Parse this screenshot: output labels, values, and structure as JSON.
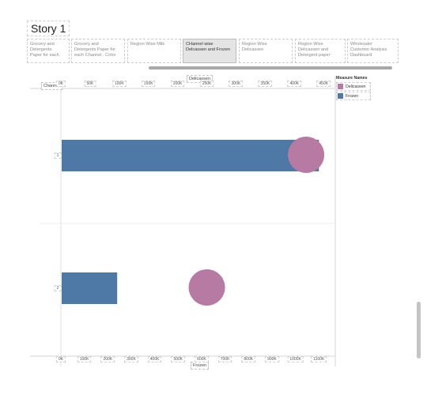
{
  "story": {
    "title": "Story 1",
    "points": [
      {
        "lines": [
          "Grocery and",
          "Detergents",
          "Paper for each"
        ],
        "active": false
      },
      {
        "lines": [
          "Grocery and",
          "Detergents Paper for",
          "each Channel . Color"
        ],
        "active": false
      },
      {
        "lines": [
          "Region Wise Milk"
        ],
        "active": false
      },
      {
        "lines": [
          "CHannel wise",
          "Delcassen and Frozen"
        ],
        "active": true
      },
      {
        "lines": [
          "Region Wise",
          "Delicassen"
        ],
        "active": false
      },
      {
        "lines": [
          "Region Wise",
          "Delicassen and",
          "Detergent paper"
        ],
        "active": false
      },
      {
        "lines": [
          "Wholesaler",
          "Customer Analysis",
          "Dashboard"
        ],
        "active": false
      }
    ]
  },
  "top_axis": {
    "title": "Delicassen",
    "ticks": [
      "0K",
      "50K",
      "100K",
      "150K",
      "200K",
      "250K",
      "300K",
      "350K",
      "400K",
      "450K"
    ]
  },
  "bottom_axis": {
    "title": "Frozen",
    "ticks": [
      "0K",
      "100K",
      "200K",
      "300K",
      "400K",
      "500K",
      "600K",
      "700K",
      "800K",
      "900K",
      "1000K",
      "1100K"
    ]
  },
  "row_header": {
    "title": "Channel"
  },
  "legend": {
    "title": "Measure Names",
    "items": [
      {
        "label": "Delicassen",
        "color": "#b77aa3"
      },
      {
        "label": "Frozen",
        "color": "#4e79a7"
      }
    ]
  },
  "chart_data": {
    "type": "bar",
    "categories": [
      "1",
      "2"
    ],
    "series": [
      {
        "name": "Frozen",
        "values": [
          1100000,
          240000
        ],
        "mark": "bar",
        "color": "#4e79a7"
      },
      {
        "name": "Delicassen",
        "values": [
          420000,
          250000
        ],
        "mark": "circle",
        "color": "#b77aa3"
      }
    ],
    "x_top": {
      "label": "Delicassen",
      "range": [
        0,
        470000
      ]
    },
    "x_bottom": {
      "label": "Frozen",
      "range": [
        0,
        1170000
      ]
    },
    "ylabel": "Channel",
    "legend": "top-right"
  }
}
